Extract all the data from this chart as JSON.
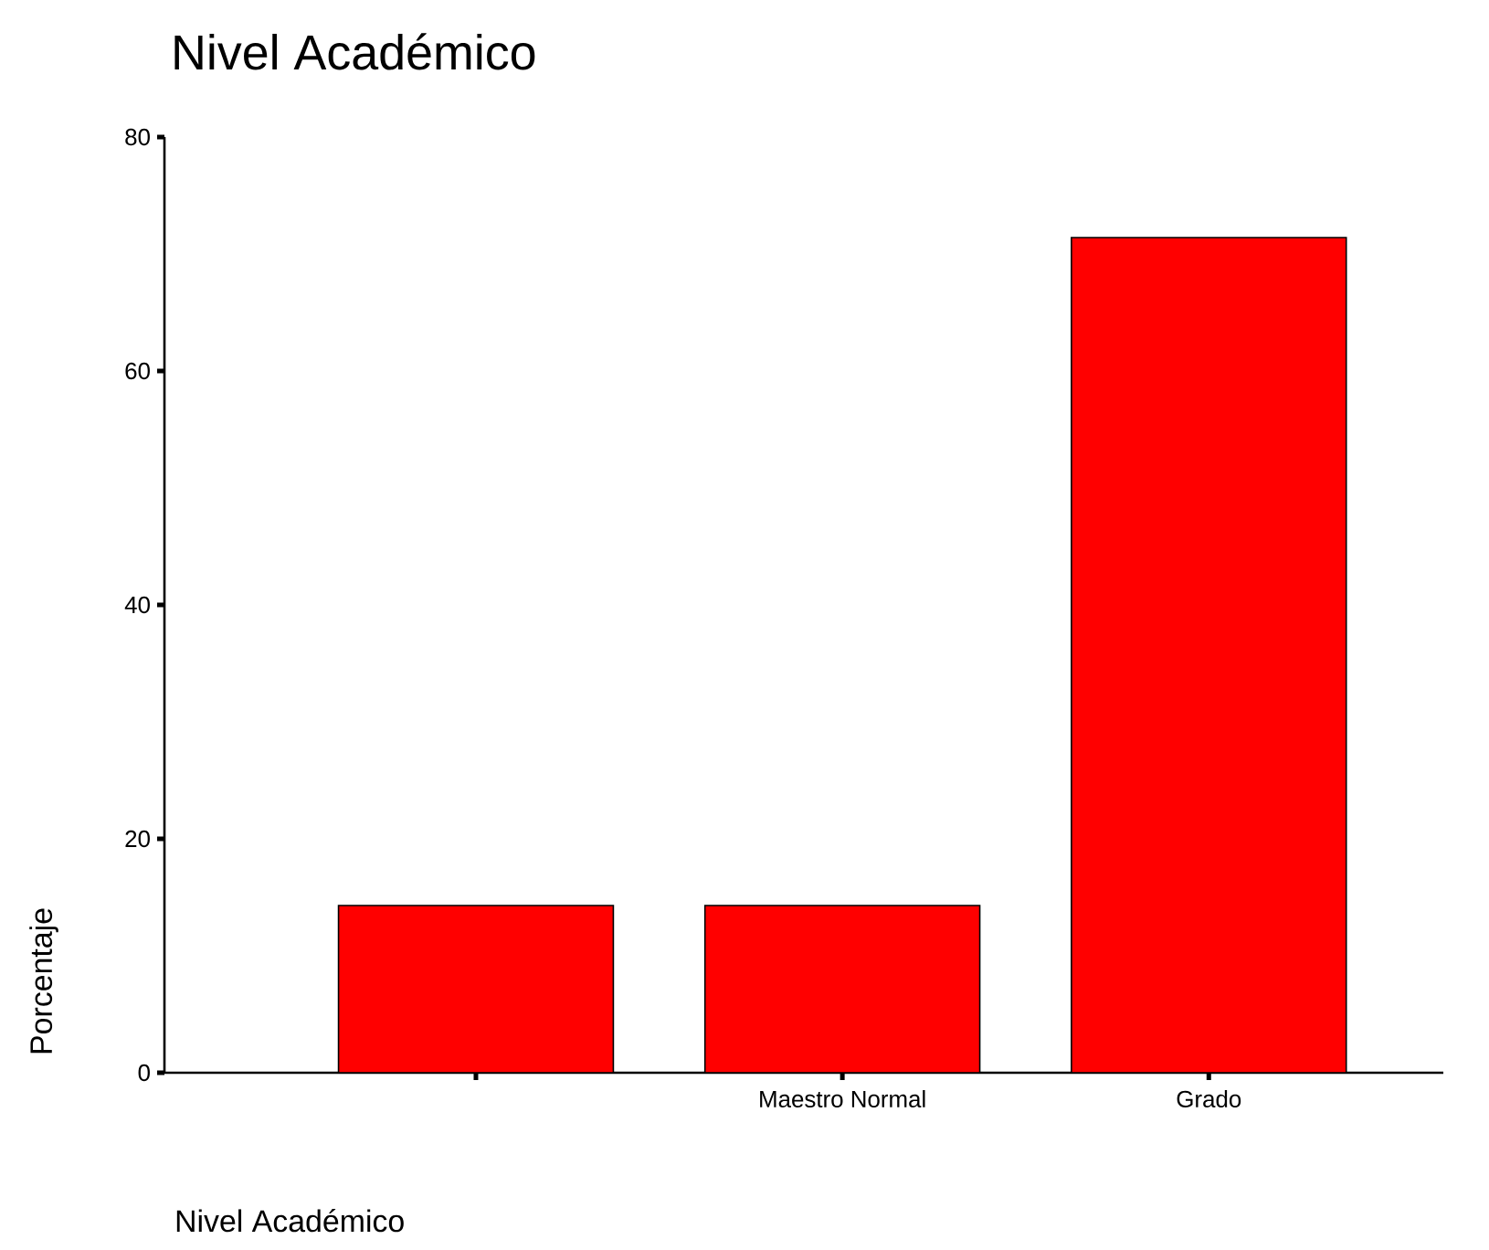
{
  "chart_data": {
    "type": "bar",
    "title": "Nivel Académico",
    "xlabel": "Nivel Académico",
    "ylabel": "Porcentaje",
    "categories": [
      null,
      "Maestro Normal",
      "Grado"
    ],
    "values": [
      14.3,
      14.3,
      71.4
    ],
    "color": "#ff0000",
    "ylim": [
      0,
      80
    ],
    "yticks": [
      0,
      20,
      40,
      60,
      80
    ],
    "grid": false
  }
}
